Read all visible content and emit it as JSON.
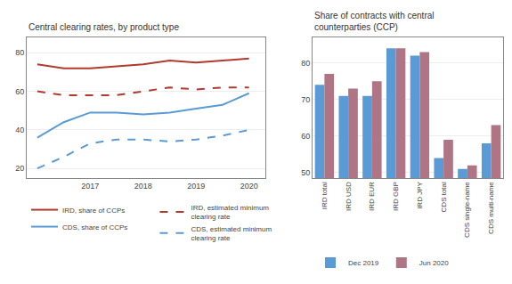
{
  "chart_data": [
    {
      "type": "line",
      "title": "Central clearing rates, by product type",
      "x": [
        2016.0,
        2016.5,
        2017.0,
        2017.5,
        2018.0,
        2018.5,
        2019.0,
        2019.5,
        2020.0
      ],
      "series": [
        {
          "name": "IRD, share of CCPs",
          "color": "#b03a2e",
          "line_style": "solid",
          "values": [
            74,
            72,
            72,
            73,
            74,
            76,
            75,
            76,
            77
          ]
        },
        {
          "name": "CDS, share of CCPs",
          "color": "#5b9bd5",
          "line_style": "solid",
          "values": [
            36,
            44,
            49,
            49,
            48,
            49,
            51,
            53,
            59
          ]
        },
        {
          "name": "IRD, estimated minimum\nclearing rate",
          "color": "#b03a2e",
          "line_style": "dashed",
          "values": [
            60,
            58,
            58,
            58,
            60,
            62,
            61,
            62,
            62
          ]
        },
        {
          "name": "CDS, estimated minimum\nclearing rate",
          "color": "#5b9bd5",
          "line_style": "dashed",
          "values": [
            20,
            26,
            33,
            35,
            35,
            34,
            35,
            37,
            40
          ]
        }
      ],
      "xlim": [
        2015.8,
        2020.3
      ],
      "xticks": [
        2017,
        2018,
        2019,
        2020
      ],
      "ylim": [
        15,
        88
      ],
      "yticks": [
        20,
        40,
        60,
        80
      ],
      "grid": true,
      "legend": "bottom"
    },
    {
      "type": "bar",
      "title": "Share of contracts with central\ncounterparties (CCP)",
      "categories": [
        "IRD total",
        "IRD USD",
        "IRD EUR",
        "IRD GBP",
        "IRD JPY",
        "CDS total",
        "CDS single-name",
        "CDS multi-name"
      ],
      "series": [
        {
          "name": "Dec 2019",
          "color": "#5b9bd5",
          "values": [
            74,
            71,
            71,
            84,
            82,
            54,
            51,
            58
          ]
        },
        {
          "name": "Jun 2020",
          "color": "#b07585",
          "values": [
            77,
            73,
            75,
            84,
            83,
            59,
            52,
            63
          ]
        }
      ],
      "ylim": [
        48.5,
        87
      ],
      "yticks": [
        50,
        60,
        70,
        80
      ],
      "grid": true,
      "legend": "bottom"
    }
  ]
}
